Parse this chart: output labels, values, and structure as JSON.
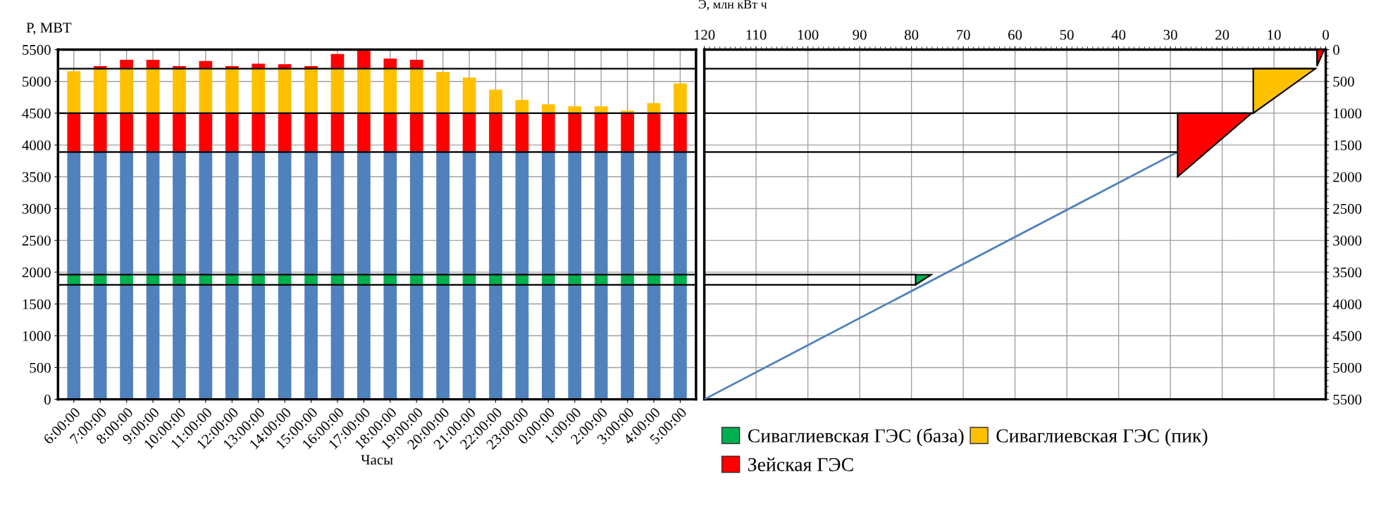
{
  "chart_data": [
    {
      "type": "bar",
      "stacked": true,
      "ylabel": "P, МВТ",
      "xlabel": "Часы",
      "categories": [
        "6:00:00",
        "7:00:00",
        "8:00:00",
        "9:00:00",
        "10:00:00",
        "11:00:00",
        "12:00:00",
        "13:00:00",
        "14:00:00",
        "15:00:00",
        "16:00:00",
        "17:00:00",
        "18:00:00",
        "19:00:00",
        "20:00:00",
        "21:00:00",
        "22:00:00",
        "23:00:00",
        "0:00:00",
        "1:00:00",
        "2:00:00",
        "3:00:00",
        "4:00:00",
        "5:00:00"
      ],
      "series": [
        {
          "color": "#4f81bd",
          "values": [
            1800,
            1800,
            1800,
            1800,
            1800,
            1800,
            1800,
            1800,
            1800,
            1800,
            1800,
            1800,
            1800,
            1800,
            1800,
            1800,
            1800,
            1800,
            1800,
            1800,
            1800,
            1800,
            1800,
            1800
          ]
        },
        {
          "name": "Сиваглиевская ГЭС (база)",
          "color": "#00b050",
          "values": [
            160,
            160,
            160,
            160,
            160,
            160,
            160,
            160,
            160,
            160,
            160,
            160,
            160,
            160,
            160,
            160,
            160,
            160,
            160,
            160,
            160,
            160,
            160,
            160
          ]
        },
        {
          "color": "#4f81bd",
          "values": [
            1930,
            1930,
            1930,
            1930,
            1930,
            1930,
            1930,
            1930,
            1930,
            1930,
            1930,
            1930,
            1930,
            1930,
            1930,
            1930,
            1930,
            1930,
            1930,
            1930,
            1930,
            1930,
            1930,
            1930
          ]
        },
        {
          "name": "Зейская ГЭС",
          "color": "#ff0000",
          "values": [
            610,
            610,
            610,
            610,
            610,
            610,
            610,
            610,
            610,
            610,
            610,
            610,
            610,
            610,
            610,
            610,
            610,
            610,
            610,
            610,
            610,
            610,
            610,
            610
          ]
        },
        {
          "name": "Сиваглиевская ГЭС (пик)",
          "color": "#ffc000",
          "values": [
            660,
            700,
            700,
            700,
            700,
            700,
            700,
            700,
            700,
            700,
            700,
            700,
            700,
            700,
            650,
            560,
            370,
            210,
            140,
            110,
            110,
            40,
            160,
            470
          ]
        },
        {
          "color": "#ff0000",
          "values": [
            null,
            40,
            140,
            140,
            40,
            120,
            40,
            80,
            70,
            40,
            230,
            290,
            160,
            140,
            null,
            null,
            null,
            null,
            null,
            null,
            null,
            null,
            null,
            null
          ]
        }
      ],
      "ylim": [
        0,
        5500
      ],
      "yticks": [
        0,
        500,
        1000,
        1500,
        2000,
        2500,
        3000,
        3500,
        4000,
        4500,
        5000,
        5500
      ],
      "ref_lines": [
        {
          "axis": "y",
          "value": 5200,
          "color": "#000000"
        },
        {
          "axis": "y",
          "value": 4500,
          "color": "#000000"
        },
        {
          "axis": "y",
          "value": 3890,
          "color": "#000000"
        },
        {
          "axis": "y",
          "value": 1960,
          "color": "#000000"
        },
        {
          "axis": "y",
          "value": 1800,
          "color": "#000000"
        }
      ],
      "grid": true,
      "legend": "bottom right"
    },
    {
      "type": "line",
      "xlabel": "Э, млн кВт ч",
      "xlim": [
        120,
        0
      ],
      "xticks": [
        120,
        110,
        100,
        90,
        80,
        70,
        60,
        50,
        40,
        30,
        20,
        10,
        0
      ],
      "ylim": [
        5500,
        0
      ],
      "yticks": [
        0,
        500,
        1000,
        1500,
        2000,
        2500,
        3000,
        3500,
        4000,
        4500,
        5000,
        5500
      ],
      "grid": true,
      "series": [
        {
          "color": "#4f81bd",
          "x": [
            120,
            28.6
          ],
          "values": [
            5500,
            1610
          ]
        },
        {
          "color": "#000000",
          "x": [
            120,
            2
          ],
          "values": [
            300,
            300
          ]
        },
        {
          "color": "#000000",
          "x": [
            120,
            14.3
          ],
          "values": [
            1000,
            1000
          ]
        },
        {
          "color": "#000000",
          "x": [
            120,
            28.6
          ],
          "values": [
            1610,
            1610
          ]
        },
        {
          "color": "#000000",
          "x": [
            120,
            79.2
          ],
          "values": [
            3540,
            3540
          ]
        },
        {
          "color": "#000000",
          "x": [
            120,
            79.2
          ],
          "values": [
            3700,
            3700
          ]
        },
        {
          "type": "area",
          "color": "#ff0000",
          "x": [
            1.7,
            0.3,
            1.7
          ],
          "values": [
            0,
            0,
            260
          ]
        },
        {
          "type": "area",
          "color": "#ffc000",
          "x": [
            14,
            2,
            14
          ],
          "values": [
            300,
            300,
            1000
          ]
        },
        {
          "type": "area",
          "color": "#ff0000",
          "x": [
            28.6,
            14.3,
            28.6
          ],
          "values": [
            1000,
            1000,
            2000
          ]
        },
        {
          "type": "area",
          "color": "#00b050",
          "x": [
            79.2,
            76.2,
            79.2
          ],
          "values": [
            3540,
            3540,
            3700
          ]
        }
      ]
    }
  ]
}
